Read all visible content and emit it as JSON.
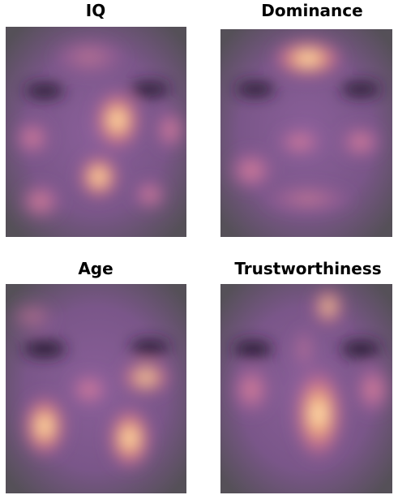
{
  "panels": [
    {
      "title": "IQ"
    },
    {
      "title": "Dominance"
    },
    {
      "title": "Age"
    },
    {
      "title": "Trustworthiness"
    }
  ]
}
